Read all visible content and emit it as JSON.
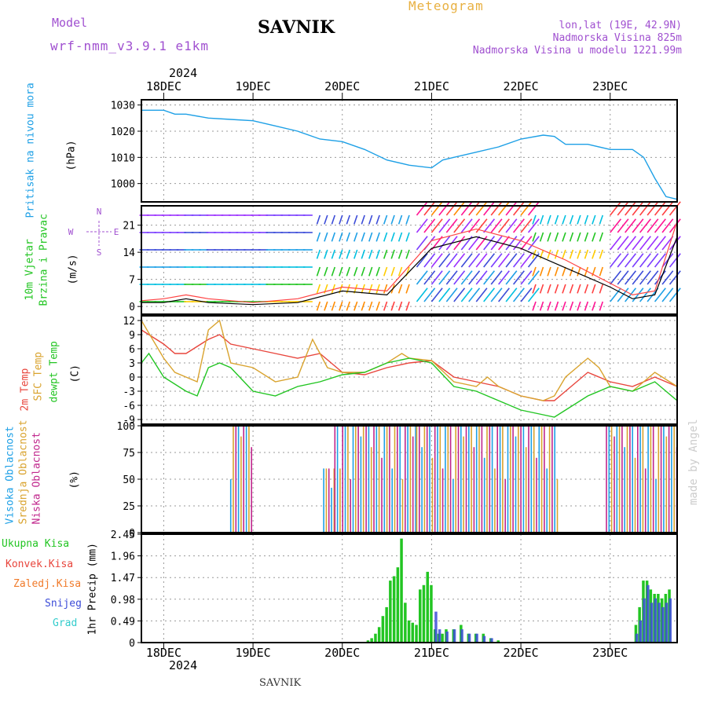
{
  "header": {
    "model_label": "Model",
    "model_name": "wrf-nmm_v3.9.1 e1km",
    "station": "SAVNIK",
    "title": "Meteogram",
    "lonlat": "lon,lat (19E, 42.9N)",
    "elev": "Nadmorska Visina 825m",
    "elev_model": "Nadmorska Visina u modelu 1221.99m",
    "footer_station": "SAVNIK",
    "watermark": "made by Angel"
  },
  "time_axis": {
    "year": "2024",
    "days": [
      "18DEC",
      "19DEC",
      "20DEC",
      "21DEC",
      "22DEC",
      "23DEC"
    ],
    "start_hour": -6,
    "end_hour": 138
  },
  "chart_data": [
    {
      "type": "line",
      "panel": "pressure",
      "ylabel": "Pritisak na nivou mora",
      "unit": "(hPa)",
      "ylim": [
        993,
        1032
      ],
      "yticks": [
        1000,
        1010,
        1020,
        1030
      ],
      "series": [
        {
          "color": "#1ea0e6",
          "points": [
            [
              -6,
              1028
            ],
            [
              0,
              1028
            ],
            [
              3,
              1026.5
            ],
            [
              6,
              1026.5
            ],
            [
              12,
              1025
            ],
            [
              18,
              1024.5
            ],
            [
              24,
              1024
            ],
            [
              30,
              1022
            ],
            [
              36,
              1020
            ],
            [
              42,
              1017
            ],
            [
              48,
              1016
            ],
            [
              54,
              1013
            ],
            [
              60,
              1009
            ],
            [
              66,
              1007
            ],
            [
              72,
              1006
            ],
            [
              75,
              1009
            ],
            [
              78,
              1010
            ],
            [
              84,
              1012
            ],
            [
              90,
              1014
            ],
            [
              96,
              1017
            ],
            [
              102,
              1018.5
            ],
            [
              105,
              1018
            ],
            [
              108,
              1015
            ],
            [
              114,
              1015
            ],
            [
              120,
              1013
            ],
            [
              126,
              1013
            ],
            [
              129,
              1010
            ],
            [
              132,
              1002
            ],
            [
              135,
              995
            ],
            [
              138,
              994
            ]
          ]
        }
      ]
    },
    {
      "type": "line",
      "panel": "wind",
      "ylabel": [
        "10m Vjetar",
        "Brzina i Pravac"
      ],
      "unit": "(m/s)",
      "ylim": [
        -2,
        26
      ],
      "yticks": [
        0,
        7,
        14,
        21
      ],
      "compass": {
        "N": "N",
        "E": "E",
        "S": "S",
        "W": "W"
      },
      "series": [
        {
          "color": "#000000",
          "points": [
            [
              -6,
              1
            ],
            [
              0,
              1
            ],
            [
              6,
              2
            ],
            [
              12,
              1
            ],
            [
              24,
              0.5
            ],
            [
              36,
              1
            ],
            [
              48,
              4
            ],
            [
              60,
              3
            ],
            [
              72,
              15
            ],
            [
              84,
              18
            ],
            [
              96,
              15
            ],
            [
              108,
              10
            ],
            [
              120,
              5
            ],
            [
              126,
              2
            ],
            [
              132,
              3
            ],
            [
              138,
              18
            ]
          ]
        },
        {
          "color": "#ff4444",
          "points": [
            [
              -6,
              1.5
            ],
            [
              0,
              2
            ],
            [
              6,
              3
            ],
            [
              12,
              2
            ],
            [
              24,
              1
            ],
            [
              36,
              2
            ],
            [
              48,
              5
            ],
            [
              60,
              4
            ],
            [
              72,
              17
            ],
            [
              84,
              20
            ],
            [
              96,
              17
            ],
            [
              108,
              12
            ],
            [
              120,
              6
            ],
            [
              126,
              3
            ],
            [
              132,
              4
            ],
            [
              138,
              22
            ]
          ]
        }
      ]
    },
    {
      "type": "line",
      "panel": "temperature",
      "ylabel": [
        "2m Temp",
        "SFC Temp",
        "dewpt Temp"
      ],
      "unit": "(C)",
      "ylim": [
        -10,
        13
      ],
      "yticks": [
        -9,
        -6,
        -3,
        0,
        3,
        6,
        9,
        12
      ],
      "series": [
        {
          "name": "2m Temp",
          "color": "#e8453c",
          "points": [
            [
              -6,
              10
            ],
            [
              0,
              7
            ],
            [
              3,
              5
            ],
            [
              6,
              5
            ],
            [
              12,
              8
            ],
            [
              15,
              9
            ],
            [
              18,
              7
            ],
            [
              24,
              6
            ],
            [
              30,
              5
            ],
            [
              36,
              4
            ],
            [
              42,
              5
            ],
            [
              48,
              1
            ],
            [
              54,
              0.5
            ],
            [
              60,
              2
            ],
            [
              66,
              3
            ],
            [
              72,
              3.5
            ],
            [
              78,
              0
            ],
            [
              84,
              -1
            ],
            [
              90,
              -2
            ],
            [
              96,
              -4
            ],
            [
              102,
              -5
            ],
            [
              105,
              -5
            ],
            [
              108,
              -3
            ],
            [
              114,
              1
            ],
            [
              120,
              -1
            ],
            [
              126,
              -2
            ],
            [
              132,
              0
            ],
            [
              138,
              -2
            ]
          ]
        },
        {
          "name": "SFC Temp",
          "color": "#d9a32e",
          "points": [
            [
              -6,
              12
            ],
            [
              0,
              4
            ],
            [
              3,
              1
            ],
            [
              6,
              0
            ],
            [
              9,
              -1
            ],
            [
              12,
              10
            ],
            [
              15,
              12
            ],
            [
              18,
              3
            ],
            [
              24,
              2
            ],
            [
              30,
              -1
            ],
            [
              36,
              0
            ],
            [
              40,
              8
            ],
            [
              44,
              2
            ],
            [
              48,
              1
            ],
            [
              54,
              1
            ],
            [
              60,
              3
            ],
            [
              64,
              5
            ],
            [
              66,
              4
            ],
            [
              72,
              3.5
            ],
            [
              78,
              -1
            ],
            [
              84,
              -2
            ],
            [
              87,
              0
            ],
            [
              90,
              -2
            ],
            [
              96,
              -4
            ],
            [
              102,
              -5
            ],
            [
              105,
              -4
            ],
            [
              108,
              0
            ],
            [
              114,
              4
            ],
            [
              117,
              2
            ],
            [
              120,
              -2
            ],
            [
              126,
              -3
            ],
            [
              132,
              1
            ],
            [
              138,
              -2
            ]
          ]
        },
        {
          "name": "dewpt Temp",
          "color": "#22c522",
          "points": [
            [
              -6,
              3
            ],
            [
              -4,
              5
            ],
            [
              0,
              0
            ],
            [
              6,
              -3
            ],
            [
              9,
              -4
            ],
            [
              12,
              2
            ],
            [
              15,
              3
            ],
            [
              18,
              2
            ],
            [
              24,
              -3
            ],
            [
              30,
              -4
            ],
            [
              36,
              -2
            ],
            [
              42,
              -1
            ],
            [
              48,
              0.5
            ],
            [
              54,
              1
            ],
            [
              60,
              3
            ],
            [
              66,
              4
            ],
            [
              72,
              3
            ],
            [
              78,
              -2
            ],
            [
              84,
              -3
            ],
            [
              90,
              -5
            ],
            [
              96,
              -7
            ],
            [
              102,
              -8
            ],
            [
              105,
              -8.5
            ],
            [
              108,
              -7
            ],
            [
              114,
              -4
            ],
            [
              120,
              -2
            ],
            [
              126,
              -3
            ],
            [
              132,
              -1
            ],
            [
              138,
              -5
            ]
          ]
        }
      ]
    },
    {
      "type": "bar",
      "panel": "clouds",
      "ylabel": [
        "Visoka Oblacnost",
        "Srednja Oblacnost",
        "Niska Oblacnost"
      ],
      "unit": "(%)",
      "ylim": [
        0,
        100
      ],
      "yticks": [
        0,
        25,
        50,
        75,
        100
      ],
      "series": [
        {
          "name": "Visoka Oblacnost",
          "color": "#1ea0e6"
        },
        {
          "name": "Srednja Oblacnost",
          "color": "#d9a32e"
        },
        {
          "name": "Niska Oblacnost",
          "color": "#c0268c"
        }
      ],
      "segments": [
        {
          "from": 18,
          "to": 24,
          "value": 100
        },
        {
          "from": 43,
          "to": 46,
          "value": 60
        },
        {
          "from": 46,
          "to": 68,
          "value": 100
        },
        {
          "from": 68,
          "to": 106,
          "value": 100
        },
        {
          "from": 119,
          "to": 138,
          "value": 100
        }
      ]
    },
    {
      "type": "bar",
      "panel": "precip",
      "ylabel": [
        "Ukupna Kisa",
        "Konvek.Kisa",
        "Zaledj.Kisa",
        "Snijeg",
        "Grad"
      ],
      "label_colors": [
        "#22c522",
        "#e8453c",
        "#f07a2a",
        "#3c4cd8",
        "#33cccc"
      ],
      "unit": "1hr Precip (mm)",
      "ylim": [
        0,
        2.45
      ],
      "yticks": [
        0,
        0.49,
        0.98,
        1.47,
        1.96,
        2.45
      ],
      "series": [
        {
          "name": "Ukupna Kisa",
          "color": "#22c522",
          "points": [
            [
              55,
              0.05
            ],
            [
              56,
              0.1
            ],
            [
              57,
              0.2
            ],
            [
              58,
              0.35
            ],
            [
              59,
              0.6
            ],
            [
              60,
              0.8
            ],
            [
              61,
              1.4
            ],
            [
              62,
              1.5
            ],
            [
              63,
              1.7
            ],
            [
              64,
              2.35
            ],
            [
              65,
              0.9
            ],
            [
              66,
              0.5
            ],
            [
              67,
              0.45
            ],
            [
              68,
              0.4
            ],
            [
              69,
              1.2
            ],
            [
              70,
              1.3
            ],
            [
              71,
              1.6
            ],
            [
              72,
              1.3
            ],
            [
              73,
              0.3
            ],
            [
              74,
              0.2
            ],
            [
              75,
              0.2
            ],
            [
              76,
              0.3
            ],
            [
              78,
              0.3
            ],
            [
              80,
              0.4
            ],
            [
              82,
              0.2
            ],
            [
              84,
              0.2
            ],
            [
              86,
              0.2
            ],
            [
              88,
              0.1
            ],
            [
              90,
              0.05
            ],
            [
              127,
              0.4
            ],
            [
              128,
              0.8
            ],
            [
              129,
              1.4
            ],
            [
              130,
              1.4
            ],
            [
              131,
              1.2
            ],
            [
              132,
              1.1
            ],
            [
              133,
              1.1
            ],
            [
              134,
              1.0
            ],
            [
              135,
              1.1
            ],
            [
              136,
              1.2
            ]
          ]
        },
        {
          "name": "Snijeg",
          "color": "#3c4cd8",
          "points": [
            [
              73,
              0.7
            ],
            [
              74,
              0.3
            ],
            [
              76,
              0.25
            ],
            [
              78,
              0.3
            ],
            [
              80,
              0.3
            ],
            [
              82,
              0.2
            ],
            [
              84,
              0.2
            ],
            [
              86,
              0.15
            ],
            [
              88,
              0.1
            ],
            [
              127,
              0.2
            ],
            [
              128,
              0.5
            ],
            [
              129,
              1.0
            ],
            [
              130,
              1.3
            ],
            [
              131,
              0.9
            ],
            [
              132,
              1.0
            ],
            [
              133,
              0.9
            ],
            [
              134,
              0.8
            ],
            [
              135,
              0.9
            ],
            [
              136,
              1.0
            ]
          ]
        }
      ]
    }
  ],
  "colors": {
    "frame": "#000000",
    "grid": "#888888",
    "purple": "#a050d0",
    "orange_title": "#e8b040"
  }
}
